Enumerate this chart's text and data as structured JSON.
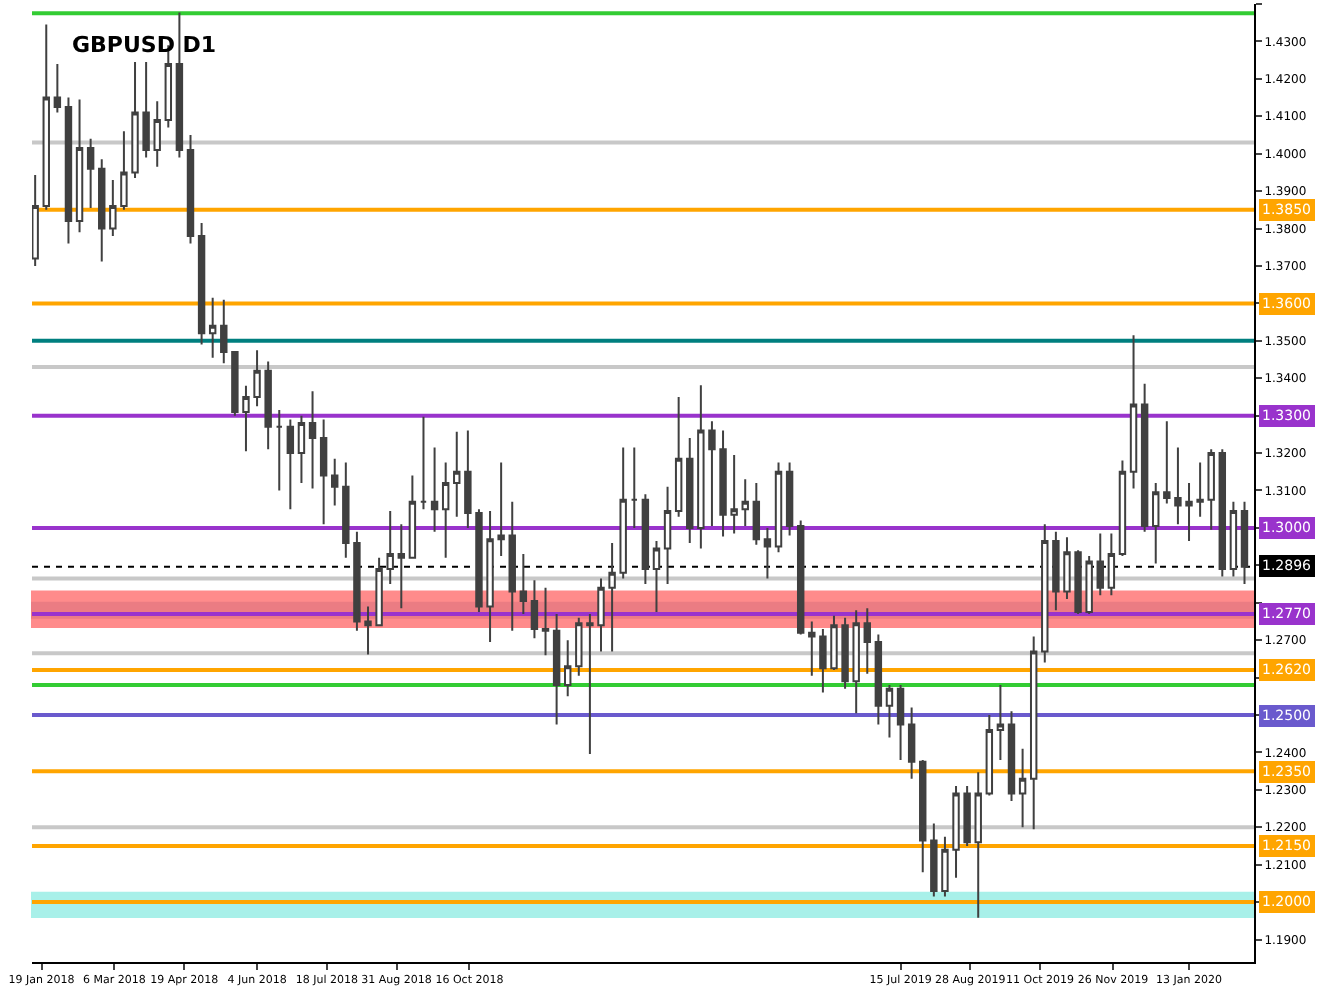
{
  "chart_data": {
    "type": "candlestick",
    "title": "GBPUSD D1",
    "x": [
      "2018-01-15",
      "2018-01-22",
      "2018-01-29",
      "2018-02-05",
      "2018-02-12",
      "2018-02-19",
      "2018-02-26",
      "2018-03-05",
      "2018-03-12",
      "2018-03-19",
      "2018-03-26",
      "2018-04-02",
      "2018-04-09",
      "2018-04-16",
      "2018-04-23",
      "2018-04-30",
      "2018-05-07",
      "2018-05-14",
      "2018-05-21",
      "2018-05-28",
      "2018-06-04",
      "2018-06-11",
      "2018-06-18",
      "2018-06-25",
      "2018-07-02",
      "2018-07-09",
      "2018-07-16",
      "2018-07-23",
      "2018-07-30",
      "2018-08-06",
      "2018-08-13",
      "2018-08-20",
      "2018-08-27",
      "2018-09-03",
      "2018-09-10",
      "2018-09-17",
      "2018-09-24",
      "2018-10-01",
      "2018-10-08",
      "2018-10-15",
      "2018-10-22",
      "2018-10-29",
      "2018-11-05",
      "2018-11-12",
      "2018-11-19",
      "2018-11-26",
      "2018-12-03",
      "2018-12-10",
      "2018-12-17",
      "2018-12-24",
      "2018-12-31",
      "2019-01-07",
      "2019-01-14",
      "2019-01-21",
      "2019-01-28",
      "2019-02-04",
      "2019-02-11",
      "2019-02-18",
      "2019-02-25",
      "2019-03-04",
      "2019-03-11",
      "2019-03-18",
      "2019-03-25",
      "2019-04-01",
      "2019-04-08",
      "2019-04-15",
      "2019-04-22",
      "2019-04-29",
      "2019-05-06",
      "2019-05-13",
      "2019-05-20",
      "2019-05-27",
      "2019-06-03",
      "2019-06-10",
      "2019-06-17",
      "2019-06-24",
      "2019-07-01",
      "2019-07-08",
      "2019-07-15",
      "2019-07-22",
      "2019-07-29",
      "2019-08-05",
      "2019-08-12",
      "2019-08-19",
      "2019-08-26",
      "2019-09-02",
      "2019-09-09",
      "2019-09-16",
      "2019-09-23",
      "2019-09-30",
      "2019-10-07",
      "2019-10-14",
      "2019-10-21",
      "2019-10-28",
      "2019-11-04",
      "2019-11-11",
      "2019-11-18",
      "2019-11-25",
      "2019-12-02",
      "2019-12-09",
      "2019-12-16",
      "2019-12-23",
      "2019-12-30",
      "2020-01-06",
      "2020-01-13",
      "2020-01-20",
      "2020-01-27",
      "2020-02-03",
      "2020-02-10",
      "2020-02-17"
    ],
    "ohlc": [
      [
        1.372,
        1.3943,
        1.37,
        1.386
      ],
      [
        1.386,
        1.4345,
        1.385,
        1.415
      ],
      [
        1.415,
        1.424,
        1.411,
        1.4125
      ],
      [
        1.4125,
        1.415,
        1.376,
        1.382
      ],
      [
        1.382,
        1.4145,
        1.379,
        1.4015
      ],
      [
        1.4015,
        1.404,
        1.3855,
        1.396
      ],
      [
        1.396,
        1.3985,
        1.3712,
        1.38
      ],
      [
        1.38,
        1.393,
        1.378,
        1.386
      ],
      [
        1.386,
        1.406,
        1.385,
        1.395
      ],
      [
        1.395,
        1.4245,
        1.3935,
        1.411
      ],
      [
        1.411,
        1.4245,
        1.399,
        1.401
      ],
      [
        1.401,
        1.414,
        1.3965,
        1.409
      ],
      [
        1.409,
        1.429,
        1.407,
        1.424
      ],
      [
        1.424,
        1.4377,
        1.399,
        1.401
      ],
      [
        1.401,
        1.405,
        1.376,
        1.378
      ],
      [
        1.378,
        1.3815,
        1.349,
        1.352
      ],
      [
        1.352,
        1.3615,
        1.3455,
        1.354
      ],
      [
        1.354,
        1.361,
        1.344,
        1.347
      ],
      [
        1.347,
        1.347,
        1.33,
        1.331
      ],
      [
        1.331,
        1.338,
        1.3205,
        1.335
      ],
      [
        1.335,
        1.3475,
        1.3325,
        1.342
      ],
      [
        1.342,
        1.3445,
        1.321,
        1.327
      ],
      [
        1.327,
        1.3315,
        1.31,
        1.327
      ],
      [
        1.327,
        1.329,
        1.305,
        1.32
      ],
      [
        1.32,
        1.33,
        1.312,
        1.328
      ],
      [
        1.328,
        1.3365,
        1.3105,
        1.324
      ],
      [
        1.324,
        1.329,
        1.301,
        1.314
      ],
      [
        1.314,
        1.3185,
        1.306,
        1.311
      ],
      [
        1.311,
        1.3175,
        1.292,
        1.296
      ],
      [
        1.296,
        1.299,
        1.2725,
        1.275
      ],
      [
        1.275,
        1.279,
        1.2662,
        1.274
      ],
      [
        1.274,
        1.292,
        1.274,
        1.289
      ],
      [
        1.289,
        1.3045,
        1.285,
        1.293
      ],
      [
        1.293,
        1.301,
        1.2785,
        1.292
      ],
      [
        1.292,
        1.314,
        1.292,
        1.307
      ],
      [
        1.307,
        1.3297,
        1.305,
        1.307
      ],
      [
        1.307,
        1.3215,
        1.299,
        1.305
      ],
      [
        1.305,
        1.3175,
        1.292,
        1.312
      ],
      [
        1.312,
        1.3257,
        1.303,
        1.315
      ],
      [
        1.315,
        1.326,
        1.3,
        1.304
      ],
      [
        1.304,
        1.305,
        1.2775,
        1.279
      ],
      [
        1.279,
        1.3045,
        1.2695,
        1.297
      ],
      [
        1.297,
        1.3175,
        1.2925,
        1.298
      ],
      [
        1.298,
        1.307,
        1.2725,
        1.283
      ],
      [
        1.283,
        1.293,
        1.277,
        1.2805
      ],
      [
        1.2805,
        1.286,
        1.2705,
        1.273
      ],
      [
        1.273,
        1.284,
        1.266,
        1.2725
      ],
      [
        1.2725,
        1.277,
        1.2475,
        1.258
      ],
      [
        1.258,
        1.27,
        1.255,
        1.263
      ],
      [
        1.263,
        1.276,
        1.2605,
        1.2745
      ],
      [
        1.2745,
        1.277,
        1.2396,
        1.274
      ],
      [
        1.274,
        1.2865,
        1.267,
        1.284
      ],
      [
        1.284,
        1.296,
        1.267,
        1.288
      ],
      [
        1.288,
        1.3215,
        1.2865,
        1.3075
      ],
      [
        1.3075,
        1.3215,
        1.3,
        1.3075
      ],
      [
        1.3075,
        1.309,
        1.285,
        1.289
      ],
      [
        1.289,
        1.2965,
        1.2775,
        1.2945
      ],
      [
        1.2945,
        1.311,
        1.285,
        1.3045
      ],
      [
        1.3045,
        1.335,
        1.303,
        1.3185
      ],
      [
        1.3185,
        1.324,
        1.296,
        1.3
      ],
      [
        1.3,
        1.3381,
        1.2945,
        1.326
      ],
      [
        1.326,
        1.3285,
        1.3005,
        1.321
      ],
      [
        1.321,
        1.326,
        1.2977,
        1.3035
      ],
      [
        1.3035,
        1.3195,
        1.2985,
        1.305
      ],
      [
        1.305,
        1.313,
        1.3005,
        1.307
      ],
      [
        1.307,
        1.312,
        1.2955,
        1.297
      ],
      [
        1.297,
        1.3,
        1.2865,
        1.295
      ],
      [
        1.295,
        1.3175,
        1.2935,
        1.315
      ],
      [
        1.315,
        1.3175,
        1.298,
        1.3005
      ],
      [
        1.3005,
        1.302,
        1.2715,
        1.272
      ],
      [
        1.272,
        1.275,
        1.2605,
        1.271
      ],
      [
        1.271,
        1.273,
        1.256,
        1.2625
      ],
      [
        1.2625,
        1.2765,
        1.262,
        1.274
      ],
      [
        1.274,
        1.276,
        1.257,
        1.259
      ],
      [
        1.259,
        1.278,
        1.2505,
        1.2745
      ],
      [
        1.2745,
        1.2785,
        1.261,
        1.2695
      ],
      [
        1.2695,
        1.2715,
        1.2475,
        1.2525
      ],
      [
        1.2525,
        1.258,
        1.244,
        1.257
      ],
      [
        1.257,
        1.258,
        1.238,
        1.2475
      ],
      [
        1.2475,
        1.252,
        1.233,
        1.2375
      ],
      [
        1.2375,
        1.238,
        1.208,
        1.2165
      ],
      [
        1.2165,
        1.221,
        1.2015,
        1.203
      ],
      [
        1.203,
        1.2175,
        1.2015,
        1.214
      ],
      [
        1.214,
        1.231,
        1.2065,
        1.229
      ],
      [
        1.229,
        1.231,
        1.215,
        1.216
      ],
      [
        1.216,
        1.2347,
        1.1958,
        1.229
      ],
      [
        1.229,
        1.25,
        1.2285,
        1.246
      ],
      [
        1.246,
        1.258,
        1.238,
        1.2475
      ],
      [
        1.2475,
        1.251,
        1.227,
        1.229
      ],
      [
        1.229,
        1.241,
        1.22,
        1.233
      ],
      [
        1.233,
        1.271,
        1.2195,
        1.267
      ],
      [
        1.267,
        1.301,
        1.264,
        1.2965
      ],
      [
        1.2965,
        1.299,
        1.278,
        1.283
      ],
      [
        1.283,
        1.2975,
        1.281,
        1.2935
      ],
      [
        1.2935,
        1.294,
        1.277,
        1.2775
      ],
      [
        1.2775,
        1.2925,
        1.277,
        1.291
      ],
      [
        1.291,
        1.2985,
        1.282,
        1.284
      ],
      [
        1.284,
        1.2985,
        1.282,
        1.293
      ],
      [
        1.293,
        1.318,
        1.2925,
        1.315
      ],
      [
        1.315,
        1.3515,
        1.3105,
        1.333
      ],
      [
        1.333,
        1.3385,
        1.299,
        1.3005
      ],
      [
        1.3005,
        1.312,
        1.2905,
        1.3095
      ],
      [
        1.3095,
        1.3285,
        1.3065,
        1.308
      ],
      [
        1.308,
        1.3215,
        1.301,
        1.306
      ],
      [
        1.306,
        1.312,
        1.2965,
        1.307
      ],
      [
        1.307,
        1.3175,
        1.303,
        1.3075
      ],
      [
        1.3075,
        1.321,
        1.2995,
        1.32
      ],
      [
        1.32,
        1.321,
        1.287,
        1.289
      ],
      [
        1.289,
        1.307,
        1.287,
        1.3045
      ],
      [
        1.3045,
        1.307,
        1.285,
        1.2896
      ]
    ],
    "color": "#404040",
    "xlim": [
      "2018-01-13",
      "2020-02-23"
    ],
    "xticks": [
      {
        "value": "2018-01-19",
        "label": "19 Jan 2018"
      },
      {
        "value": "2018-03-06",
        "label": "6 Mar 2018"
      },
      {
        "value": "2018-04-19",
        "label": "19 Apr 2018"
      },
      {
        "value": "2018-06-04",
        "label": "4 Jun 2018"
      },
      {
        "value": "2018-07-18",
        "label": "18 Jul 2018"
      },
      {
        "value": "2018-08-31",
        "label": "31 Aug 2018"
      },
      {
        "value": "2018-10-16",
        "label": "16 Oct 2018"
      },
      {
        "value": "2019-07-15",
        "label": "15 Jul 2019"
      },
      {
        "value": "2019-08-28",
        "label": "28 Aug 2019"
      },
      {
        "value": "2019-10-11",
        "label": "11 Oct 2019"
      },
      {
        "value": "2019-11-26",
        "label": "26 Nov 2019"
      },
      {
        "value": "2020-01-13",
        "label": "13 Jan 2020"
      }
    ],
    "ylim": [
      1.184,
      1.44
    ],
    "yticks": [
      {
        "value": 1.19,
        "label": "1.1900"
      },
      {
        "value": 1.2,
        "label": null
      },
      {
        "value": 1.21,
        "label": "1.2100"
      },
      {
        "value": 1.22,
        "label": "1.2200"
      },
      {
        "value": 1.23,
        "label": "1.2300"
      },
      {
        "value": 1.24,
        "label": "1.2400"
      },
      {
        "value": 1.25,
        "label": null
      },
      {
        "value": 1.26,
        "label": null
      },
      {
        "value": 1.27,
        "label": "1.2700"
      },
      {
        "value": 1.28,
        "label": null
      },
      {
        "value": 1.29,
        "label": null
      },
      {
        "value": 1.3,
        "label": null
      },
      {
        "value": 1.31,
        "label": "1.3100"
      },
      {
        "value": 1.32,
        "label": "1.3200"
      },
      {
        "value": 1.33,
        "label": null
      },
      {
        "value": 1.34,
        "label": "1.3400"
      },
      {
        "value": 1.35,
        "label": "1.3500"
      },
      {
        "value": 1.36,
        "label": null
      },
      {
        "value": 1.37,
        "label": "1.3700"
      },
      {
        "value": 1.38,
        "label": "1.3800"
      },
      {
        "value": 1.39,
        "label": "1.3900"
      },
      {
        "value": 1.4,
        "label": "1.4000"
      },
      {
        "value": 1.41,
        "label": "1.4100"
      },
      {
        "value": 1.42,
        "label": "1.4200"
      },
      {
        "value": 1.43,
        "label": "1.4300"
      },
      {
        "value": 1.44,
        "label": null
      }
    ],
    "grid": false,
    "bands": [
      {
        "axis": "y",
        "from": 1.276,
        "to": 1.28,
        "color": "#b0c4de"
      },
      {
        "axis": "y",
        "from": 1.196,
        "to": 1.2025,
        "color": "#40e0d0"
      },
      {
        "axis": "y",
        "from": 1.2735,
        "to": 1.283,
        "color": "#ff0000"
      }
    ],
    "ref_lines": [
      {
        "axis": "y",
        "value": 1.4375,
        "color": "#33cc33"
      },
      {
        "axis": "y",
        "value": 1.403,
        "color": "#c8c8c8"
      },
      {
        "axis": "y",
        "value": 1.385,
        "label": "1.3850",
        "color": "#ffa500"
      },
      {
        "axis": "y",
        "value": 1.36,
        "label": "1.3600",
        "color": "#ffa500"
      },
      {
        "axis": "y",
        "value": 1.35,
        "color": "#007f7f"
      },
      {
        "axis": "y",
        "value": 1.343,
        "color": "#c8c8c8"
      },
      {
        "axis": "y",
        "value": 1.33,
        "label": "1.3300",
        "color": "#9933cc"
      },
      {
        "axis": "y",
        "value": 1.3,
        "label": "1.3000",
        "color": "#9933cc"
      },
      {
        "axis": "y",
        "value": 1.2865,
        "color": "#c8c8c8"
      },
      {
        "axis": "y",
        "value": 1.2896,
        "label": "1.2896",
        "color": "#000000",
        "line_style": "dotted"
      },
      {
        "axis": "y",
        "value": 1.277,
        "label": "1.2770",
        "color": "#9933cc"
      },
      {
        "axis": "y",
        "value": 1.2665,
        "color": "#c8c8c8"
      },
      {
        "axis": "y",
        "value": 1.262,
        "label": "1.2620",
        "color": "#ffa500"
      },
      {
        "axis": "y",
        "value": 1.258,
        "color": "#33cc33"
      },
      {
        "axis": "y",
        "value": 1.25,
        "label": "1.2500",
        "color": "#6a5acd"
      },
      {
        "axis": "y",
        "value": 1.235,
        "label": "1.2350",
        "color": "#ffa500"
      },
      {
        "axis": "y",
        "value": 1.22,
        "color": "#c8c8c8"
      },
      {
        "axis": "y",
        "value": 1.215,
        "label": "1.2150",
        "color": "#ffa500"
      },
      {
        "axis": "y",
        "value": 1.2,
        "label": "1.2000",
        "color": "#ffa500"
      }
    ]
  }
}
